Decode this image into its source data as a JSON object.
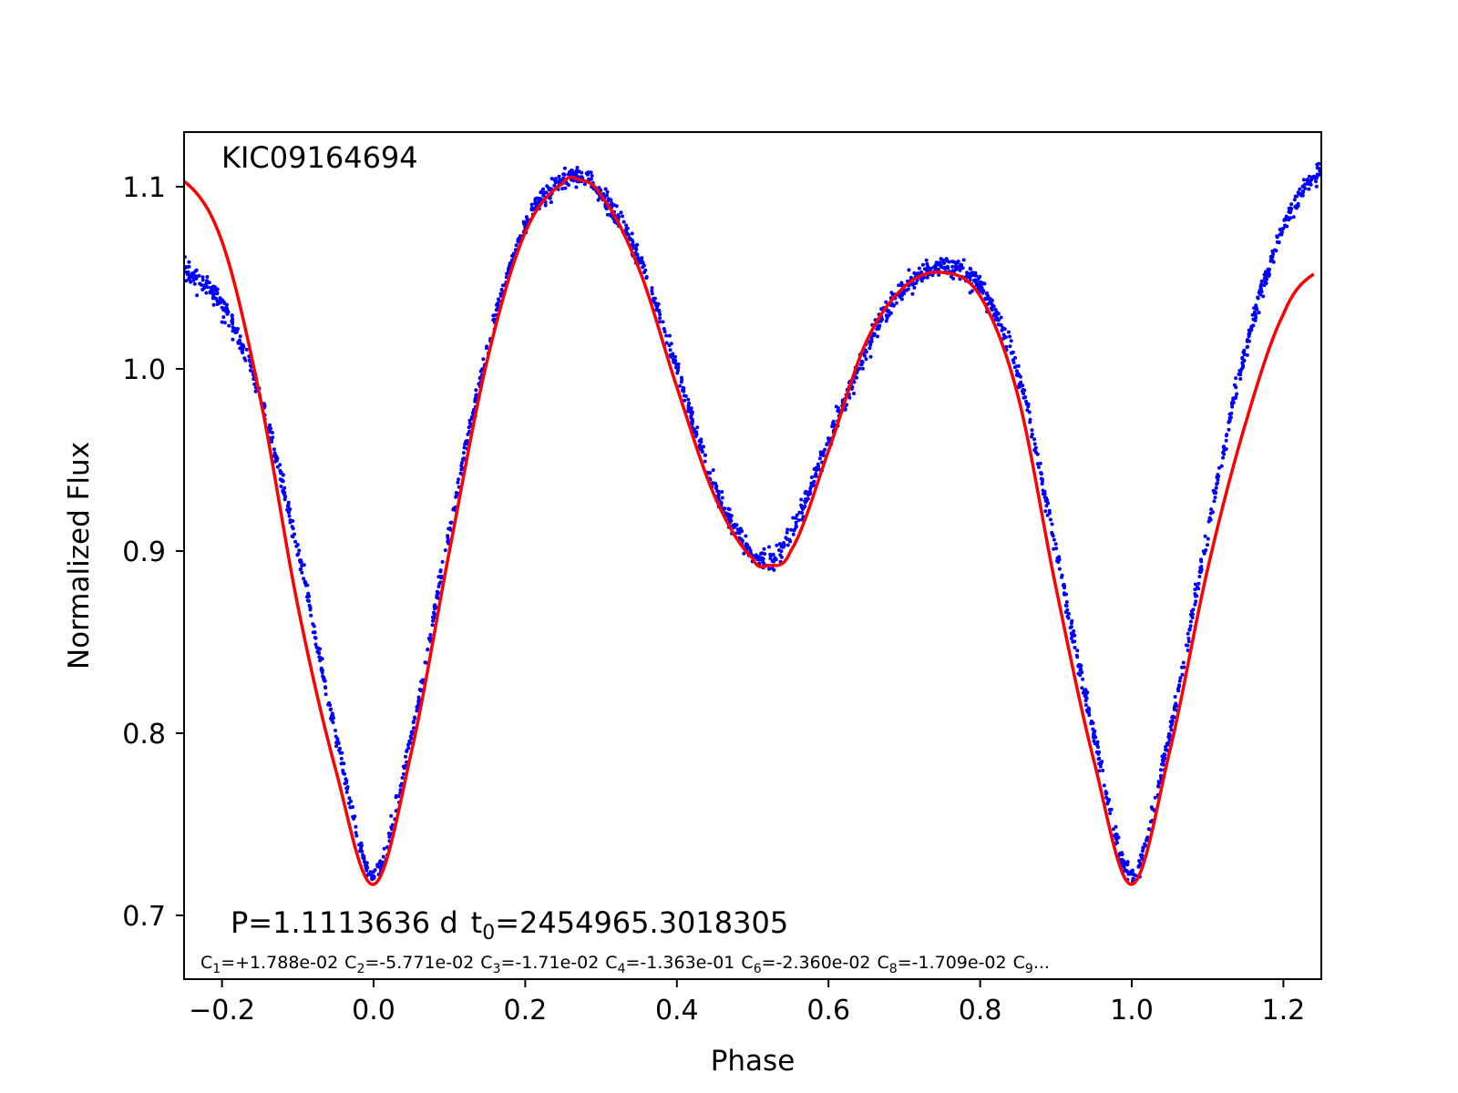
{
  "chart_data": {
    "type": "scatter",
    "title": "",
    "xlabel": "Phase",
    "ylabel": "Normalized Flux",
    "xlim": [
      -0.25,
      1.25
    ],
    "ylim": [
      0.665,
      1.13
    ],
    "grid": false,
    "x_ticks": [
      -0.2,
      0.0,
      0.2,
      0.4,
      0.6,
      0.8,
      1.0,
      1.2
    ],
    "x_tick_labels": [
      "−0.2",
      "0.0",
      "0.2",
      "0.4",
      "0.6",
      "0.8",
      "1.0",
      "1.2"
    ],
    "y_ticks": [
      0.7,
      0.8,
      0.9,
      1.0,
      1.1
    ],
    "y_tick_labels": [
      "0.7",
      "0.8",
      "0.9",
      "1.0",
      "1.1"
    ],
    "star_id": "KIC09164694",
    "ephemeris": {
      "period_prefix": "P=",
      "period_value": "1.1113636",
      "period_unit": " d",
      "t0_prefix": "t",
      "t0_sub": "0",
      "t0_value": "=2454965.3018305"
    },
    "coefficients": [
      {
        "sub": "1",
        "value": "=+1.788e-02"
      },
      {
        "sub": "2",
        "value": "=-5.771e-02"
      },
      {
        "sub": "3",
        "value": "=-1.71e-02"
      },
      {
        "sub": "4",
        "value": "=-1.363e-01"
      },
      {
        "sub": "6",
        "value": "=-2.360e-02"
      },
      {
        "sub": "8",
        "value": "=-1.709e-02"
      },
      {
        "sub": "9",
        "value": "..."
      }
    ],
    "coefficient_prefix": "C",
    "series": [
      {
        "kind": "observed",
        "marker": "points",
        "color": "#0000ff",
        "x": [
          -0.25,
          -0.2,
          -0.15,
          -0.1,
          -0.05,
          0.0,
          0.05,
          0.1,
          0.15,
          0.2,
          0.25,
          0.27,
          0.3,
          0.35,
          0.4,
          0.45,
          0.5,
          0.52,
          0.55,
          0.6,
          0.65,
          0.7,
          0.75,
          0.8,
          0.85,
          0.9,
          0.95,
          1.0,
          1.05,
          1.1,
          1.15,
          1.2,
          1.25
        ],
        "y": [
          1.054,
          1.035,
          0.985,
          0.9,
          0.8,
          0.722,
          0.8,
          0.91,
          1.01,
          1.078,
          1.103,
          1.106,
          1.095,
          1.06,
          1.0,
          0.935,
          0.9,
          0.895,
          0.91,
          0.96,
          1.01,
          1.045,
          1.056,
          1.045,
          0.998,
          0.9,
          0.8,
          0.722,
          0.8,
          0.91,
          1.01,
          1.078,
          1.108
        ]
      },
      {
        "kind": "model",
        "marker": "line",
        "color": "#ff0000",
        "x": [
          -0.25,
          -0.2,
          -0.15,
          -0.1,
          -0.05,
          0.0,
          0.05,
          0.1,
          0.15,
          0.2,
          0.25,
          0.27,
          0.3,
          0.35,
          0.4,
          0.45,
          0.5,
          0.52,
          0.55,
          0.6,
          0.65,
          0.7,
          0.75,
          0.8,
          0.85,
          0.9,
          0.95,
          1.0,
          1.05,
          1.1,
          1.15,
          1.2,
          1.24
        ],
        "y": [
          1.103,
          1.07,
          0.985,
          0.87,
          0.78,
          0.717,
          0.79,
          0.9,
          1.005,
          1.075,
          1.102,
          1.104,
          1.095,
          1.055,
          0.99,
          0.93,
          0.896,
          0.892,
          0.9,
          0.955,
          1.015,
          1.045,
          1.053,
          1.04,
          0.985,
          0.88,
          0.785,
          0.717,
          0.79,
          0.89,
          0.97,
          1.03,
          1.052
        ]
      }
    ]
  }
}
